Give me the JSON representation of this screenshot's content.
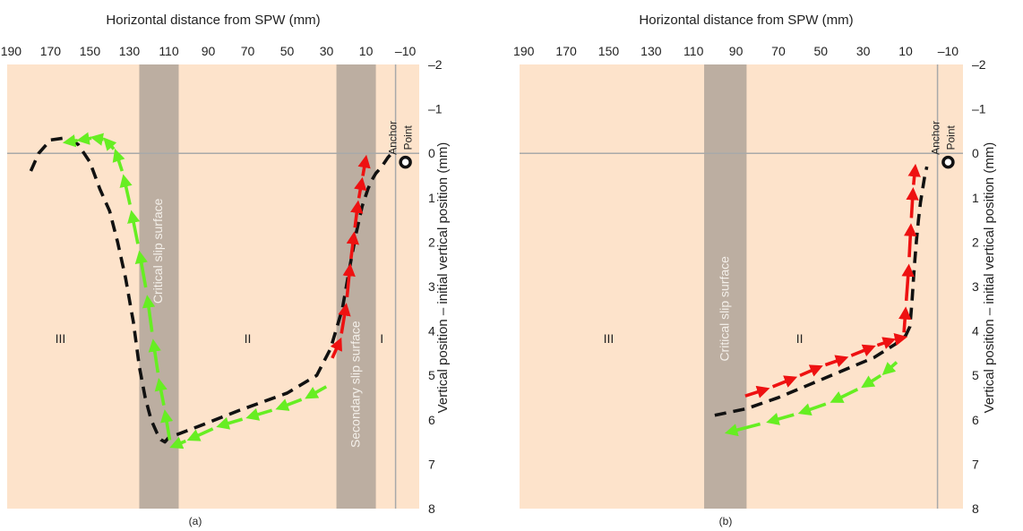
{
  "colors": {
    "background": "#fde3cb",
    "band": "#bcaea1",
    "path": "#111111",
    "outbound_arrow": "#ee1111",
    "return_arrow": "#66ee22",
    "grid": "#a9a9a9"
  },
  "chart_data": [
    {
      "type": "line",
      "caption": "(a)",
      "xlabel": "Horizontal distance from SPW (mm)",
      "ylabel": "Vertical position – initial vertical position (mm)",
      "xlim": [
        192,
        -17
      ],
      "ylim": [
        -2,
        8
      ],
      "x_reversed": true,
      "y_reversed": true,
      "x_ticks": [
        190,
        170,
        150,
        130,
        110,
        90,
        70,
        50,
        30,
        10,
        -10
      ],
      "y_ticks": [
        -2,
        -1,
        0,
        1,
        2,
        3,
        4,
        5,
        6,
        7,
        8
      ],
      "x_tick_labels": [
        "190",
        "170",
        "150",
        "130",
        "110",
        "90",
        "70",
        "50",
        "30",
        "10",
        "–10"
      ],
      "y_tick_labels": [
        "–2",
        "–1",
        "0",
        "1",
        "2",
        "3",
        "4",
        "5",
        "6",
        "7",
        "8"
      ],
      "guide_lines": {
        "x": -5,
        "y": 0
      },
      "bands": [
        {
          "from": 125,
          "to": 105,
          "label": "Critical slip surface",
          "label_y": 2.2
        },
        {
          "from": 25,
          "to": 5,
          "label": "Secondary slip surface",
          "label_y": 5.2
        }
      ],
      "regions": [
        {
          "label": "III",
          "x": 165,
          "y": 4.2
        },
        {
          "label": "II",
          "x": 70,
          "y": 4.2
        },
        {
          "label": "I",
          "x": 2,
          "y": 4.2
        }
      ],
      "anchor": {
        "x": -10,
        "y": 0.2,
        "label_line1": "Anchor",
        "label_line2": "Point"
      },
      "series": [
        {
          "role": "path",
          "x": [
            180,
            176,
            170,
            162,
            156,
            150,
            145,
            140,
            136,
            132,
            128,
            125,
            122,
            119,
            116,
            114,
            112,
            111,
            110,
            107,
            95,
            75,
            50,
            35,
            28,
            22,
            18,
            15,
            12,
            9,
            7,
            5,
            2,
            -1,
            -3
          ],
          "y": [
            0.4,
            0.0,
            -0.3,
            -0.35,
            -0.2,
            0.2,
            0.8,
            1.3,
            2.0,
            2.8,
            3.8,
            4.8,
            5.5,
            6.0,
            6.3,
            6.45,
            6.5,
            6.45,
            6.4,
            6.35,
            6.15,
            5.8,
            5.4,
            5.0,
            4.4,
            3.5,
            2.5,
            1.8,
            1.2,
            0.8,
            0.6,
            0.45,
            0.3,
            0.1,
            0.0
          ]
        },
        {
          "role": "return",
          "x": [
            28,
            40,
            55,
            70,
            85,
            100,
            108,
            109,
            112,
            115,
            118,
            121,
            125,
            129,
            133,
            137,
            142,
            148,
            155,
            162
          ],
          "y": [
            5.2,
            5.5,
            5.75,
            5.95,
            6.15,
            6.45,
            6.6,
            6.6,
            5.8,
            5.1,
            4.2,
            3.2,
            2.2,
            1.3,
            0.5,
            -0.05,
            -0.3,
            -0.35,
            -0.3,
            -0.25
          ]
        },
        {
          "role": "outbound",
          "x": [
            28,
            23,
            20,
            18,
            16,
            14,
            12,
            10
          ],
          "y": [
            4.7,
            4.2,
            3.4,
            2.5,
            1.8,
            1.1,
            0.6,
            0.1
          ]
        }
      ]
    },
    {
      "type": "line",
      "caption": "(b)",
      "xlabel": "Horizontal distance from SPW (mm)",
      "ylabel": "Vertical position – initial vertical position (mm)",
      "xlim": [
        192,
        -17
      ],
      "ylim": [
        -2,
        8
      ],
      "x_reversed": true,
      "y_reversed": true,
      "x_ticks": [
        190,
        170,
        150,
        130,
        110,
        90,
        70,
        50,
        30,
        10,
        -10
      ],
      "y_ticks": [
        -2,
        -1,
        0,
        1,
        2,
        3,
        4,
        5,
        6,
        7,
        8
      ],
      "x_tick_labels": [
        "190",
        "170",
        "150",
        "130",
        "110",
        "90",
        "70",
        "50",
        "30",
        "10",
        "–10"
      ],
      "y_tick_labels": [
        "–2",
        "–1",
        "0",
        "1",
        "2",
        "3",
        "4",
        "5",
        "6",
        "7",
        "8"
      ],
      "guide_lines": {
        "x": -5,
        "y": 0
      },
      "bands": [
        {
          "from": 105,
          "to": 85,
          "label": "Critical slip surface",
          "label_y": 3.5
        }
      ],
      "regions": [
        {
          "label": "III",
          "x": 150,
          "y": 4.2
        },
        {
          "label": "II",
          "x": 60,
          "y": 4.2
        }
      ],
      "anchor": {
        "x": -10,
        "y": 0.2,
        "label_line1": "Anchor",
        "label_line2": "Point"
      },
      "series": [
        {
          "role": "path",
          "x": [
            100,
            85,
            70,
            55,
            40,
            25,
            15,
            10,
            8,
            7,
            6,
            5,
            4,
            3,
            2,
            1,
            0
          ],
          "y": [
            5.9,
            5.75,
            5.5,
            5.2,
            4.9,
            4.6,
            4.3,
            4.1,
            3.9,
            3.3,
            2.6,
            2.0,
            1.5,
            1.1,
            0.8,
            0.5,
            0.3
          ]
        },
        {
          "role": "outbound",
          "x": [
            88,
            75,
            62,
            50,
            38,
            25,
            16,
            11,
            10,
            8.5,
            7.5,
            6.5,
            5.5
          ],
          "y": [
            5.5,
            5.3,
            5.05,
            4.8,
            4.6,
            4.35,
            4.2,
            4.15,
            3.5,
            2.5,
            1.6,
            0.8,
            0.3
          ]
        },
        {
          "role": "return",
          "x": [
            13,
            20,
            30,
            45,
            60,
            75,
            95
          ],
          "y": [
            4.65,
            4.95,
            5.25,
            5.6,
            5.85,
            6.05,
            6.3
          ]
        }
      ]
    }
  ]
}
